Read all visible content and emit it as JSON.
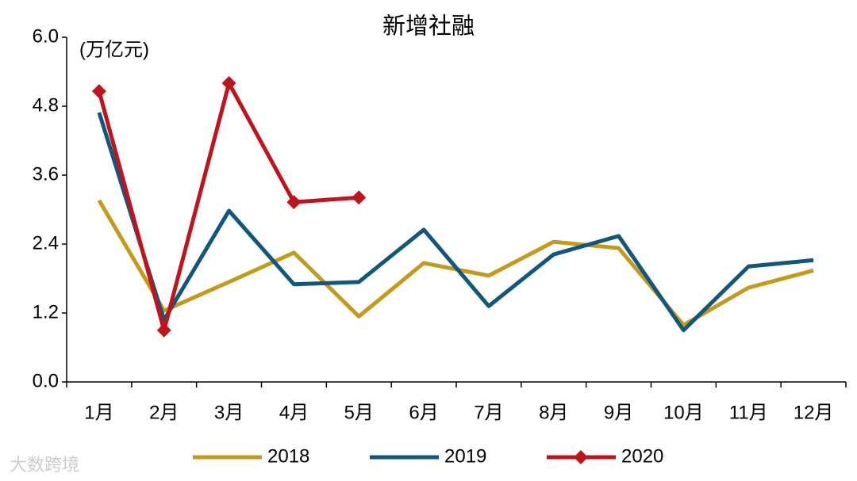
{
  "chart_data": {
    "type": "line",
    "title": "新增社融",
    "annotation": "(万亿元)",
    "watermark": "大数跨境",
    "categories": [
      "1月",
      "2月",
      "3月",
      "4月",
      "5月",
      "6月",
      "7月",
      "8月",
      "9月",
      "10月",
      "11月",
      "12月"
    ],
    "series": [
      {
        "name": "2018",
        "color": "#c49a1c",
        "values": [
          3.16,
          1.24,
          1.74,
          2.25,
          1.14,
          2.07,
          1.85,
          2.44,
          2.33,
          0.99,
          1.64,
          1.94
        ]
      },
      {
        "name": "2019",
        "color": "#11577c",
        "values": [
          4.69,
          1.08,
          2.98,
          1.7,
          1.74,
          2.65,
          1.32,
          2.22,
          2.54,
          0.9,
          2.01,
          2.12
        ]
      },
      {
        "name": "2020",
        "color": "#c0141c",
        "marker": "diamond",
        "values": [
          5.06,
          0.9,
          5.2,
          3.13,
          3.21,
          null,
          null,
          null,
          null,
          null,
          null,
          null
        ]
      }
    ],
    "ylim": [
      0,
      6
    ],
    "yticks": [
      {
        "value": 0,
        "label": "0.0"
      },
      {
        "value": 1.2,
        "label": "1.2"
      },
      {
        "value": 2.4,
        "label": "2.4"
      },
      {
        "value": 3.6,
        "label": "3.6"
      },
      {
        "value": 4.8,
        "label": "4.8"
      },
      {
        "value": 6,
        "label": "6.0"
      }
    ],
    "grid": false,
    "legend": "bottom"
  }
}
